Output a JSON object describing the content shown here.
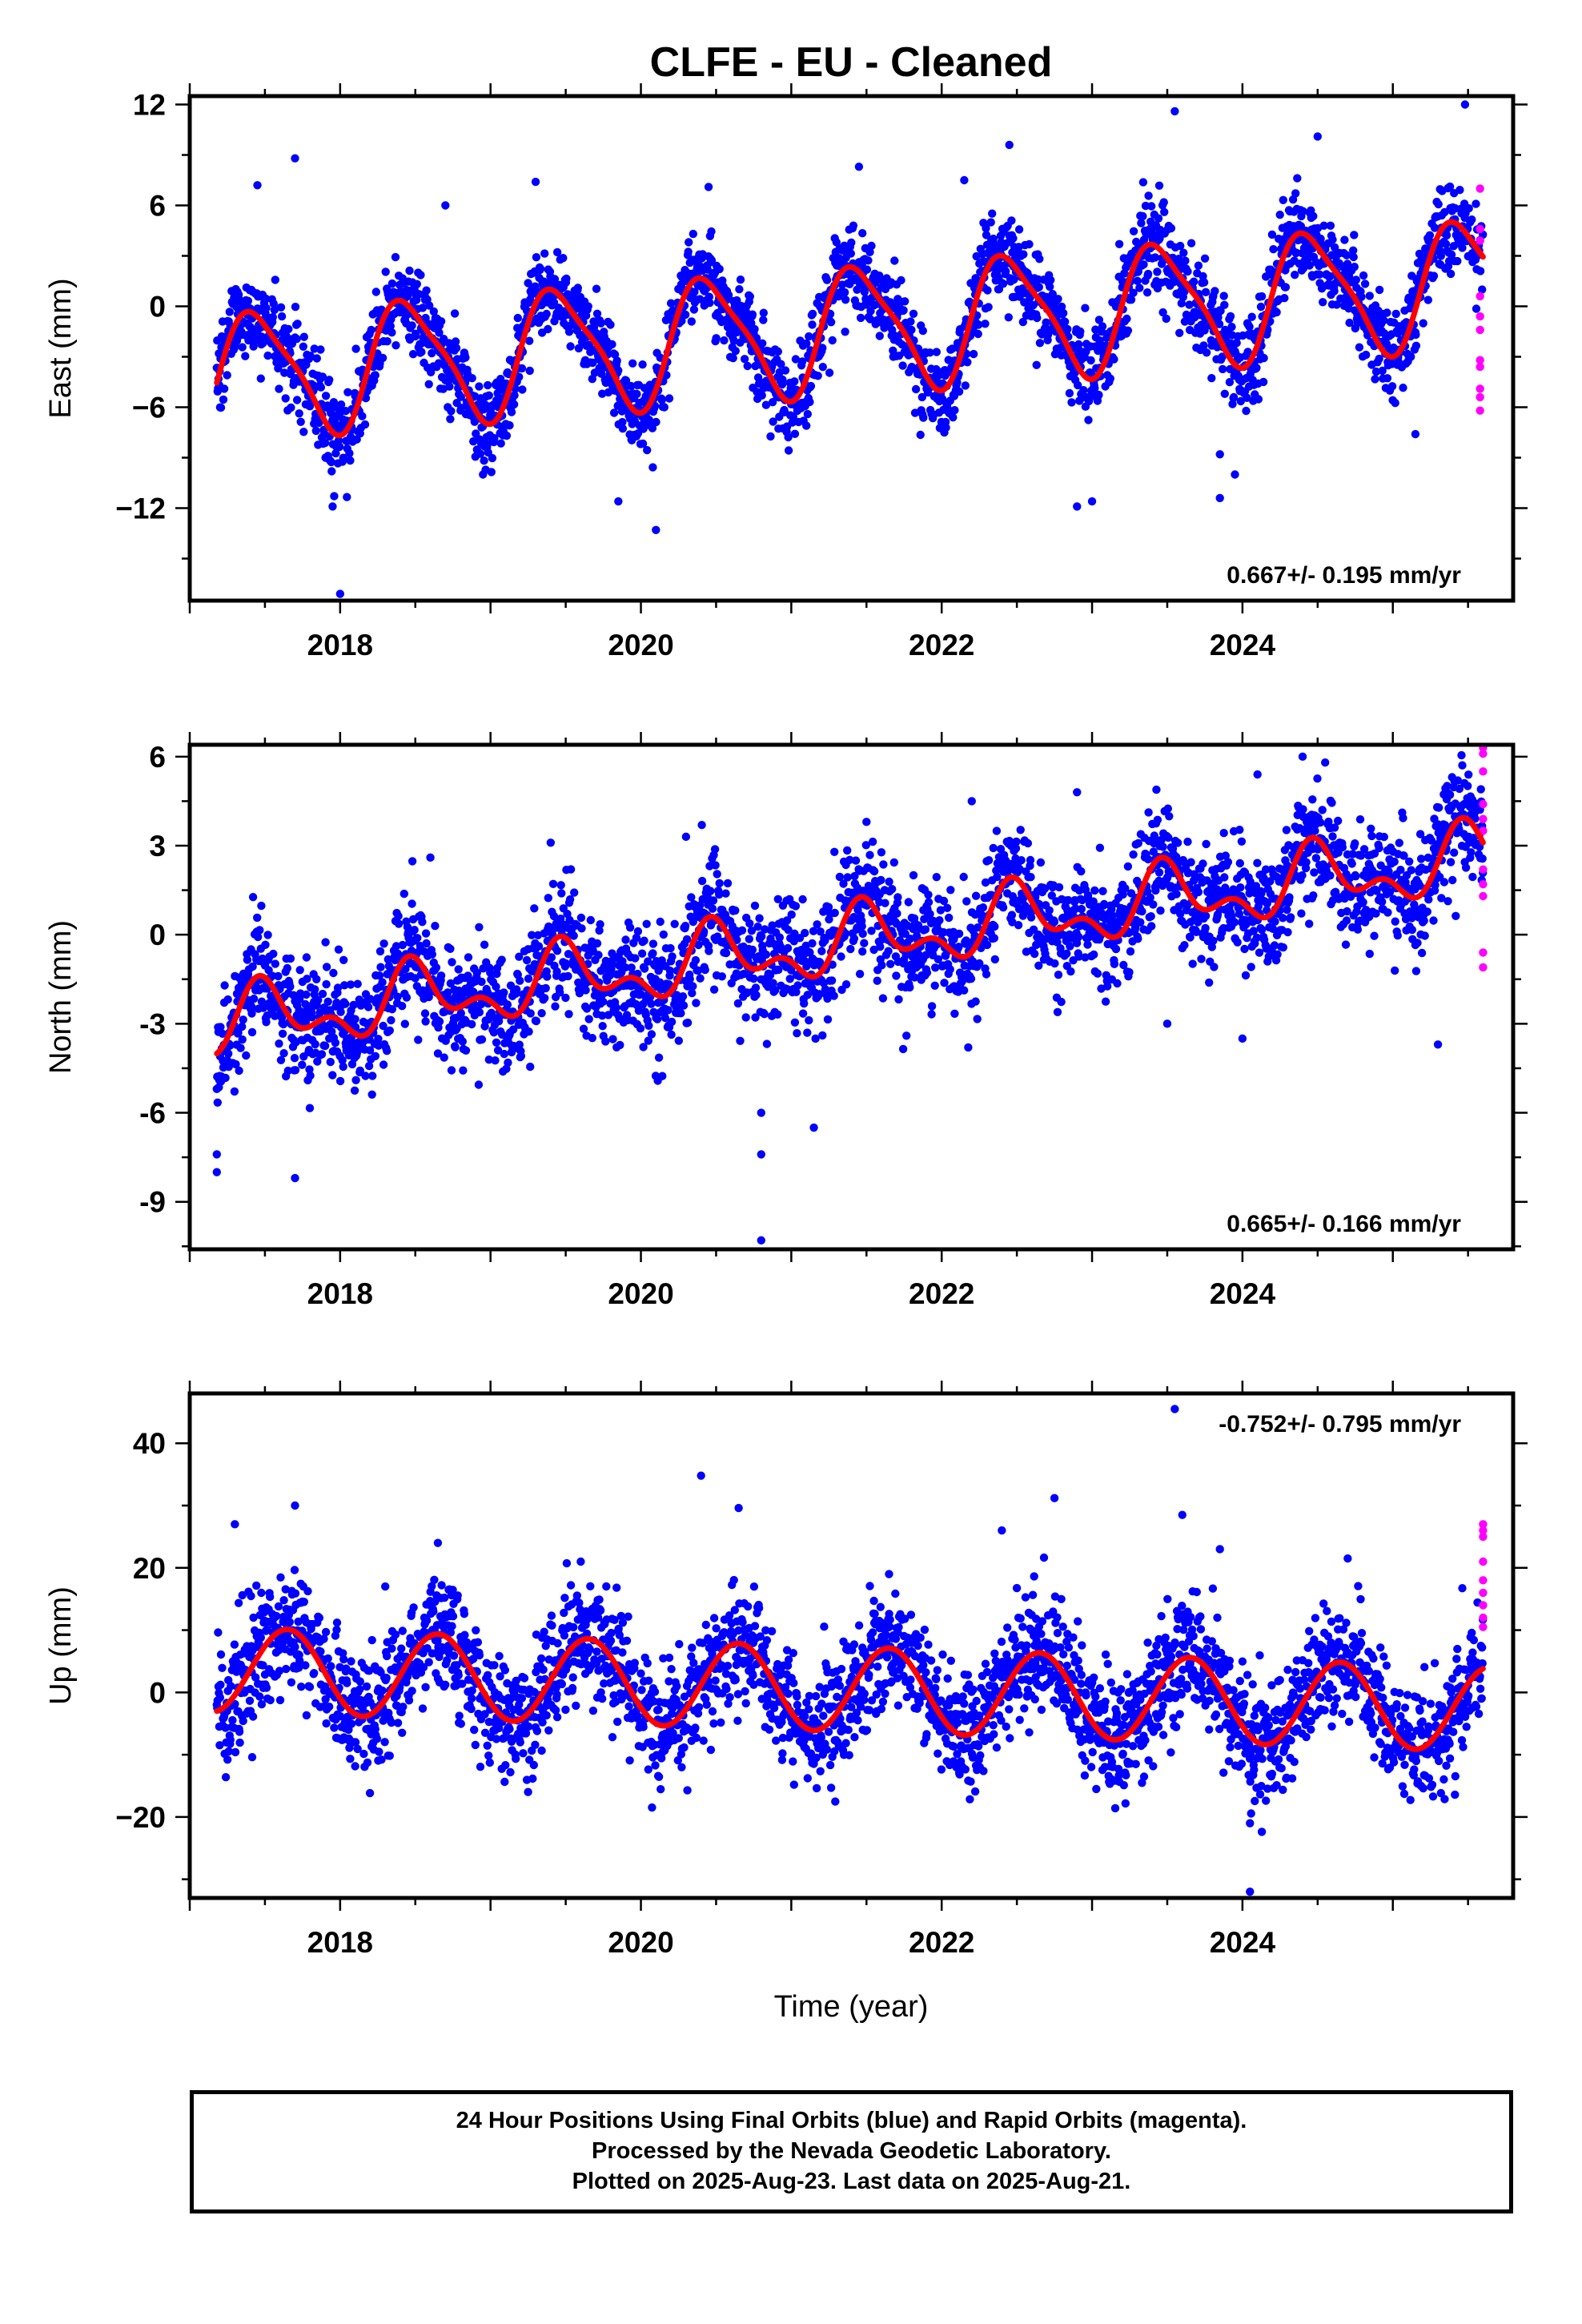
{
  "chart_data": {
    "title": "CLFE  - EU - Cleaned",
    "xlabel": "Time (year)",
    "legend": {
      "final_orbits_color": "#0000ff",
      "rapid_orbits_color": "#ff00ff",
      "model_color": "#ff0000"
    },
    "panels": [
      {
        "type": "scatter",
        "ylabel": "East (mm)",
        "xlim": [
          2017.0,
          2025.8
        ],
        "ylim": [
          -17.5,
          12.5
        ],
        "yticks": [
          -12,
          -6,
          0,
          6,
          12
        ],
        "ytick_labels": [
          "−12",
          "−6",
          "0",
          "6",
          "12"
        ],
        "xticks": [
          2018,
          2020,
          2022,
          2024
        ],
        "xtick_labels": [
          "2018",
          "2020",
          "2022",
          "2024"
        ],
        "rate_label": "0.667+/- 0.195 mm/yr",
        "rate_position": "bottom-right",
        "model": {
          "rate": 0.667,
          "offset": -1.6,
          "annual_amp": 3.6,
          "annual_peak": 0.45,
          "semi_amp": 0.8,
          "semi_peak": 0.3,
          "t0": 2021.0,
          "start": 2017.18,
          "end": 2025.6
        },
        "noise_sd": 1.3,
        "outliers": [
          [
            2017.45,
            7.2
          ],
          [
            2017.7,
            8.8
          ],
          [
            2017.95,
            -11.9
          ],
          [
            2018.0,
            -17.1
          ],
          [
            2018.7,
            6.0
          ],
          [
            2018.95,
            -10.0
          ],
          [
            2019.3,
            7.4
          ],
          [
            2019.85,
            -11.6
          ],
          [
            2020.1,
            -13.3
          ],
          [
            2020.45,
            7.1
          ],
          [
            2021.1,
            -7.1
          ],
          [
            2021.45,
            8.3
          ],
          [
            2022.15,
            7.5
          ],
          [
            2022.45,
            9.6
          ],
          [
            2022.9,
            -11.9
          ],
          [
            2023.0,
            -11.6
          ],
          [
            2023.55,
            11.6
          ],
          [
            2023.85,
            -8.8
          ],
          [
            2023.85,
            -11.4
          ],
          [
            2023.95,
            -10.0
          ],
          [
            2024.5,
            10.1
          ],
          [
            2025.15,
            -7.6
          ],
          [
            2025.48,
            12.0
          ]
        ],
        "rapid": [
          [
            2025.58,
            7.0
          ],
          [
            2025.58,
            4.6
          ],
          [
            2025.58,
            3.9
          ],
          [
            2025.58,
            0.6
          ],
          [
            2025.58,
            -0.6
          ],
          [
            2025.58,
            -1.4
          ],
          [
            2025.58,
            -3.2
          ],
          [
            2025.58,
            -3.6
          ],
          [
            2025.58,
            -4.9
          ],
          [
            2025.58,
            -5.4
          ],
          [
            2025.58,
            -6.2
          ]
        ]
      },
      {
        "type": "scatter",
        "ylabel": "North (mm)",
        "xlim": [
          2017.0,
          2025.8
        ],
        "ylim": [
          -10.6,
          6.4
        ],
        "yticks": [
          -9,
          -6,
          -3,
          0,
          3,
          6
        ],
        "ytick_labels": [
          "-9",
          "-6",
          "-3",
          "0",
          "3",
          "6"
        ],
        "xticks": [
          2018,
          2020,
          2022,
          2024
        ],
        "xtick_labels": [
          "2018",
          "2020",
          "2022",
          "2024"
        ],
        "rate_label": "0.665+/- 0.166 mm/yr",
        "rate_position": "bottom-right",
        "model": {
          "rate": 0.665,
          "offset": -0.5,
          "annual_amp": 0.9,
          "annual_peak": 0.5,
          "semi_amp": 0.6,
          "semi_peak": 0.45,
          "t0": 2021.0,
          "start": 2017.18,
          "end": 2025.6
        },
        "noise_sd": 1.0,
        "outliers": [
          [
            2017.18,
            -7.4
          ],
          [
            2017.18,
            -8.0
          ],
          [
            2017.7,
            -8.2
          ],
          [
            2018.6,
            2.6
          ],
          [
            2019.4,
            3.1
          ],
          [
            2020.3,
            3.3
          ],
          [
            2020.8,
            -6.0
          ],
          [
            2020.8,
            -7.4
          ],
          [
            2020.8,
            -10.3
          ],
          [
            2021.15,
            -6.5
          ],
          [
            2021.5,
            3.8
          ],
          [
            2022.2,
            4.5
          ],
          [
            2022.9,
            4.8
          ],
          [
            2023.5,
            -3.0
          ],
          [
            2024.0,
            -3.5
          ],
          [
            2024.1,
            5.4
          ],
          [
            2024.4,
            6.0
          ],
          [
            2024.55,
            5.8
          ],
          [
            2025.3,
            -3.7
          ]
        ],
        "rapid": [
          [
            2025.6,
            6.3
          ],
          [
            2025.6,
            6.1
          ],
          [
            2025.6,
            5.5
          ],
          [
            2025.6,
            4.4
          ],
          [
            2025.6,
            3.9
          ],
          [
            2025.6,
            3.5
          ],
          [
            2025.6,
            2.2
          ],
          [
            2025.6,
            1.7
          ],
          [
            2025.6,
            1.3
          ],
          [
            2025.6,
            -0.6
          ],
          [
            2025.6,
            -1.1
          ]
        ]
      },
      {
        "type": "scatter",
        "ylabel": "Up (mm)",
        "xlim": [
          2017.0,
          2025.8
        ],
        "ylim": [
          -33.0,
          48.0
        ],
        "yticks": [
          -20,
          0,
          20,
          40
        ],
        "ytick_labels": [
          "−20",
          "0",
          "20",
          "40"
        ],
        "xticks": [
          2018,
          2020,
          2022,
          2024
        ],
        "xtick_labels": [
          "2018",
          "2020",
          "2022",
          "2024"
        ],
        "rate_label": "-0.752+/- 0.795 mm/yr",
        "rate_position": "top-right",
        "model": {
          "rate": -0.752,
          "offset": 0.8,
          "annual_amp": 6.8,
          "annual_peak": 0.65,
          "semi_amp": 0.0,
          "semi_peak": 0.0,
          "t0": 2021.0,
          "start": 2017.18,
          "end": 2025.6
        },
        "noise_sd": 4.8,
        "outliers": [
          [
            2017.3,
            27.0
          ],
          [
            2017.7,
            30.0
          ],
          [
            2018.3,
            17.0
          ],
          [
            2018.65,
            24.0
          ],
          [
            2019.6,
            21.0
          ],
          [
            2020.4,
            34.8
          ],
          [
            2020.65,
            29.6
          ],
          [
            2021.65,
            19.0
          ],
          [
            2022.4,
            26.0
          ],
          [
            2022.75,
            31.2
          ],
          [
            2023.55,
            45.5
          ],
          [
            2023.6,
            28.5
          ],
          [
            2023.85,
            23.0
          ],
          [
            2024.05,
            -32.0
          ],
          [
            2024.05,
            -21.0
          ],
          [
            2024.7,
            21.5
          ]
        ],
        "rapid": [
          [
            2025.6,
            27.0
          ],
          [
            2025.6,
            26.0
          ],
          [
            2025.6,
            25.0
          ],
          [
            2025.6,
            21.0
          ],
          [
            2025.6,
            18.0
          ],
          [
            2025.6,
            16.0
          ],
          [
            2025.6,
            14.0
          ],
          [
            2025.6,
            12.0
          ],
          [
            2025.6,
            10.5
          ]
        ]
      }
    ]
  },
  "footer": {
    "line1": "24 Hour Positions Using Final Orbits (blue) and Rapid Orbits (magenta).",
    "line2": "Processed by the Nevada Geodetic Laboratory.",
    "line3": "Plotted on 2025-Aug-23. Last data on 2025-Aug-21."
  }
}
